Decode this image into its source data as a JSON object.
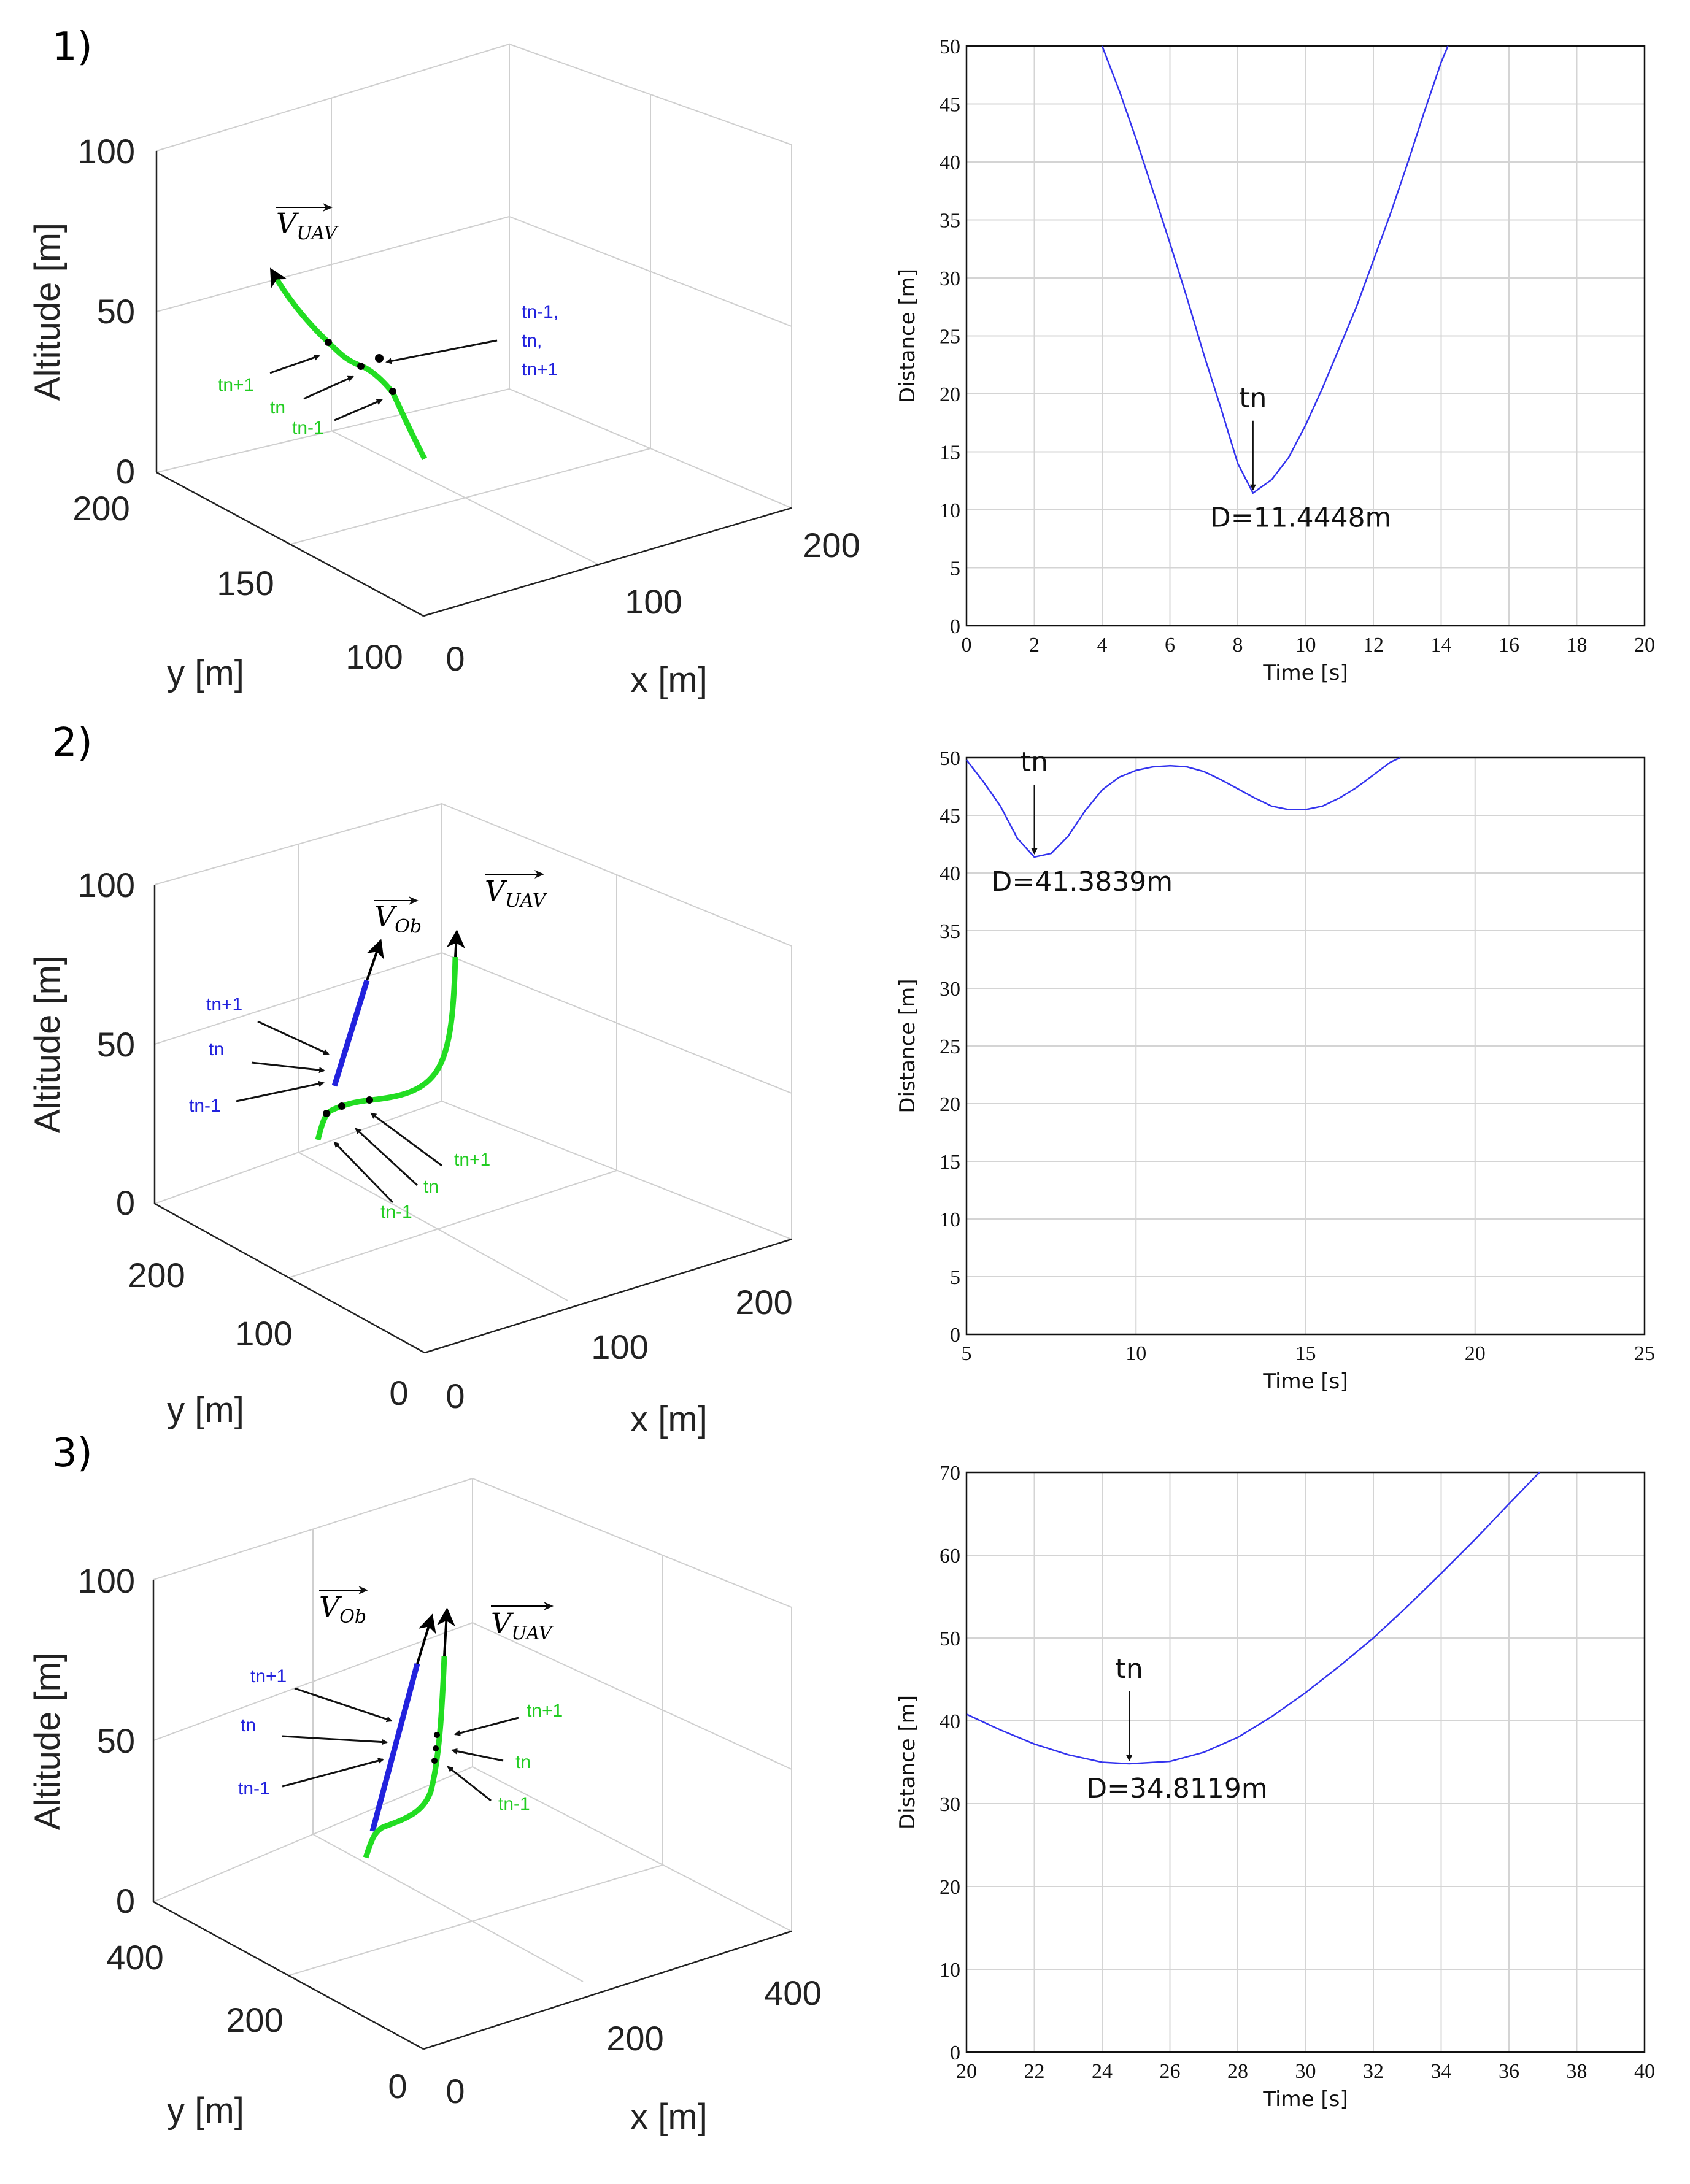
{
  "panels": [
    {
      "label": "1)",
      "plot3d": {
        "zlabel": "Altitude [m]",
        "xlabel": "x [m]",
        "ylabel": "y [m]",
        "zticks": [
          "0",
          "50",
          "100"
        ],
        "xticks": [
          "0",
          "100",
          "200"
        ],
        "yticks": [
          "100",
          "150",
          "200"
        ],
        "vectors": [
          {
            "name": "V",
            "sub": "UAV"
          }
        ],
        "green_labels": [
          "tn+1",
          "tn",
          "tn-1"
        ],
        "blue_labels": [
          "tn-1,",
          "tn,",
          "tn+1"
        ]
      }
    },
    {
      "label": "2)",
      "plot3d": {
        "zlabel": "Altitude [m]",
        "xlabel": "x [m]",
        "ylabel": "y [m]",
        "zticks": [
          "0",
          "50",
          "100"
        ],
        "xticks": [
          "0",
          "100",
          "200"
        ],
        "yticks": [
          "0",
          "100",
          "200"
        ],
        "vectors": [
          {
            "name": "V",
            "sub": "Ob"
          },
          {
            "name": "V",
            "sub": "UAV"
          }
        ],
        "blue_labels": [
          "tn+1",
          "tn",
          "tn-1"
        ],
        "green_labels": [
          "tn+1",
          "tn",
          "tn-1"
        ]
      }
    },
    {
      "label": "3)",
      "plot3d": {
        "zlabel": "Altitude [m]",
        "xlabel": "x [m]",
        "ylabel": "y [m]",
        "zticks": [
          "0",
          "50",
          "100"
        ],
        "xticks": [
          "0",
          "200",
          "400"
        ],
        "yticks": [
          "0",
          "200",
          "400"
        ],
        "vectors": [
          {
            "name": "V",
            "sub": "Ob"
          },
          {
            "name": "V",
            "sub": "UAV"
          }
        ],
        "blue_labels": [
          "tn+1",
          "tn",
          "tn-1"
        ],
        "green_labels": [
          "tn+1",
          "tn",
          "tn-1"
        ]
      }
    }
  ],
  "chart_data": [
    {
      "type": "line",
      "xlabel": "Time [s]",
      "ylabel": "Distance [m]",
      "xlim": [
        0,
        20
      ],
      "ylim": [
        0,
        50
      ],
      "grid": true,
      "xticks": [
        0,
        2,
        4,
        6,
        8,
        10,
        12,
        14,
        16,
        18,
        20
      ],
      "yticks": [
        0,
        5,
        10,
        15,
        20,
        25,
        30,
        35,
        40,
        45,
        50
      ],
      "series": [
        {
          "color": "#3333ee",
          "x": [
            4.0,
            4.5,
            5.0,
            5.5,
            6.0,
            6.5,
            7.0,
            7.5,
            8.0,
            8.45,
            9.0,
            9.5,
            10.0,
            10.5,
            11.0,
            11.5,
            12.0,
            12.5,
            13.0,
            13.5,
            14.0,
            14.2
          ],
          "y": [
            50.0,
            46.2,
            42.0,
            37.5,
            33.0,
            28.3,
            23.4,
            18.8,
            14.0,
            11.4448,
            12.6,
            14.5,
            17.3,
            20.5,
            24.0,
            27.5,
            31.5,
            35.5,
            39.8,
            44.3,
            48.6,
            50.0
          ]
        }
      ],
      "annotation": {
        "label": "tn",
        "text": "D=11.4448m",
        "x": 8.45,
        "y": 11.4448
      }
    },
    {
      "type": "line",
      "xlabel": "Time [s]",
      "ylabel": "Distance [m]",
      "xlim": [
        5,
        25
      ],
      "ylim": [
        0,
        50
      ],
      "grid": true,
      "xticks": [
        5,
        10,
        15,
        20,
        25
      ],
      "yticks": [
        0,
        5,
        10,
        15,
        20,
        25,
        30,
        35,
        40,
        45,
        50
      ],
      "series": [
        {
          "color": "#3333ee",
          "x": [
            5.0,
            5.5,
            6.0,
            6.5,
            7.0,
            7.5,
            8.0,
            8.5,
            9.0,
            9.5,
            10.0,
            10.5,
            11.0,
            11.5,
            12.0,
            12.5,
            13.0,
            13.5,
            14.0,
            14.5,
            15.0,
            15.5,
            16.0,
            16.5,
            17.0,
            17.5,
            17.8
          ],
          "y": [
            49.8,
            47.9,
            45.8,
            43.0,
            41.3839,
            41.7,
            43.2,
            45.4,
            47.2,
            48.3,
            48.9,
            49.2,
            49.3,
            49.2,
            48.8,
            48.1,
            47.3,
            46.5,
            45.8,
            45.5,
            45.5,
            45.8,
            46.5,
            47.4,
            48.5,
            49.6,
            50.0
          ]
        }
      ],
      "annotation": {
        "label": "tn",
        "text": "D=41.3839m",
        "x": 7.0,
        "y": 41.3839
      }
    },
    {
      "type": "line",
      "xlabel": "Time [s]",
      "ylabel": "Distance [m]",
      "xlim": [
        20,
        40
      ],
      "ylim": [
        0,
        70
      ],
      "grid": true,
      "xticks": [
        20,
        22,
        24,
        26,
        28,
        30,
        32,
        34,
        36,
        38,
        40
      ],
      "yticks": [
        0,
        10,
        20,
        30,
        40,
        50,
        60,
        70
      ],
      "series": [
        {
          "color": "#3333ee",
          "x": [
            20.0,
            21.0,
            22.0,
            23.0,
            24.0,
            24.8,
            26.0,
            27.0,
            28.0,
            29.0,
            30.0,
            31.0,
            32.0,
            33.0,
            34.0,
            35.0,
            36.0,
            36.9
          ],
          "y": [
            40.8,
            38.9,
            37.2,
            35.9,
            35.0,
            34.8119,
            35.1,
            36.2,
            38.0,
            40.5,
            43.4,
            46.6,
            50.0,
            53.8,
            57.8,
            61.9,
            66.2,
            70.0
          ]
        }
      ],
      "annotation": {
        "label": "tn",
        "text": "D=34.8119m",
        "x": 24.8,
        "y": 34.8119
      }
    }
  ]
}
